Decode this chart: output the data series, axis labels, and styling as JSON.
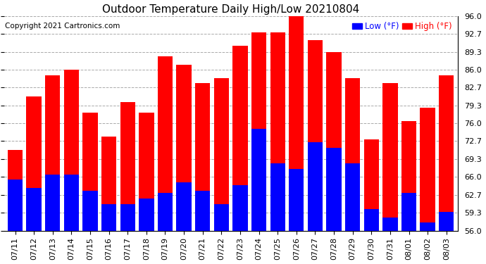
{
  "title": "Outdoor Temperature Daily High/Low 20210804",
  "copyright": "Copyright 2021 Cartronics.com",
  "background_color": "#ffffff",
  "plot_bg_color": "#ffffff",
  "grid_color": "#aaaaaa",
  "bar_width": 0.8,
  "ylim": [
    56.0,
    96.0
  ],
  "yticks": [
    56.0,
    59.3,
    62.7,
    66.0,
    69.3,
    72.7,
    76.0,
    79.3,
    82.7,
    86.0,
    89.3,
    92.7,
    96.0
  ],
  "dates": [
    "07/11",
    "07/12",
    "07/13",
    "07/14",
    "07/15",
    "07/16",
    "07/17",
    "07/18",
    "07/19",
    "07/20",
    "07/21",
    "07/22",
    "07/23",
    "07/24",
    "07/25",
    "07/26",
    "07/27",
    "07/28",
    "07/29",
    "07/30",
    "07/31",
    "08/01",
    "08/02",
    "08/03"
  ],
  "highs": [
    71.0,
    81.0,
    85.0,
    86.0,
    78.0,
    73.5,
    80.0,
    78.0,
    88.5,
    87.0,
    83.5,
    84.5,
    90.5,
    93.0,
    93.0,
    96.0,
    91.5,
    89.3,
    84.5,
    73.0,
    83.5,
    76.5,
    79.0,
    85.0
  ],
  "lows": [
    65.5,
    64.0,
    66.5,
    66.5,
    63.5,
    61.0,
    61.0,
    62.0,
    63.0,
    65.0,
    63.5,
    61.0,
    64.5,
    75.0,
    68.5,
    67.5,
    72.5,
    71.5,
    68.5,
    60.0,
    58.5,
    63.0,
    57.5,
    59.5
  ],
  "high_color": "#ff0000",
  "low_color": "#0000ff",
  "title_fontsize": 11,
  "tick_fontsize": 8,
  "copyright_fontsize": 7.5
}
